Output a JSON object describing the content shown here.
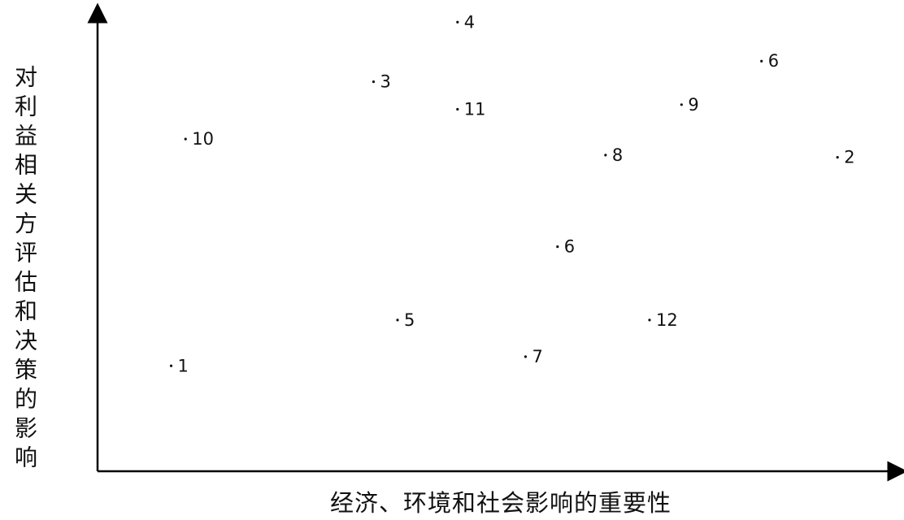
{
  "chart_data": {
    "type": "scatter",
    "xlabel": "经济、环境和社会影响的重要性",
    "ylabel": "对利益相关方评估和决策的影响",
    "grid": false,
    "points": [
      {
        "label": "1",
        "x": 9.2,
        "y": 23.0
      },
      {
        "label": "10",
        "x": 11.0,
        "y": 72.5
      },
      {
        "label": "3",
        "x": 34.5,
        "y": 85.0
      },
      {
        "label": "4",
        "x": 45.0,
        "y": 98.0
      },
      {
        "label": "11",
        "x": 45.0,
        "y": 79.0
      },
      {
        "label": "5",
        "x": 37.5,
        "y": 33.0
      },
      {
        "label": "7",
        "x": 53.5,
        "y": 25.0
      },
      {
        "label": "6",
        "x": 57.5,
        "y": 49.0
      },
      {
        "label": "8",
        "x": 63.5,
        "y": 69.0
      },
      {
        "label": "12",
        "x": 69.0,
        "y": 33.0
      },
      {
        "label": "9",
        "x": 73.0,
        "y": 80.0
      },
      {
        "label": "6",
        "x": 83.0,
        "y": 89.5
      },
      {
        "label": "2",
        "x": 92.5,
        "y": 68.5
      }
    ]
  }
}
